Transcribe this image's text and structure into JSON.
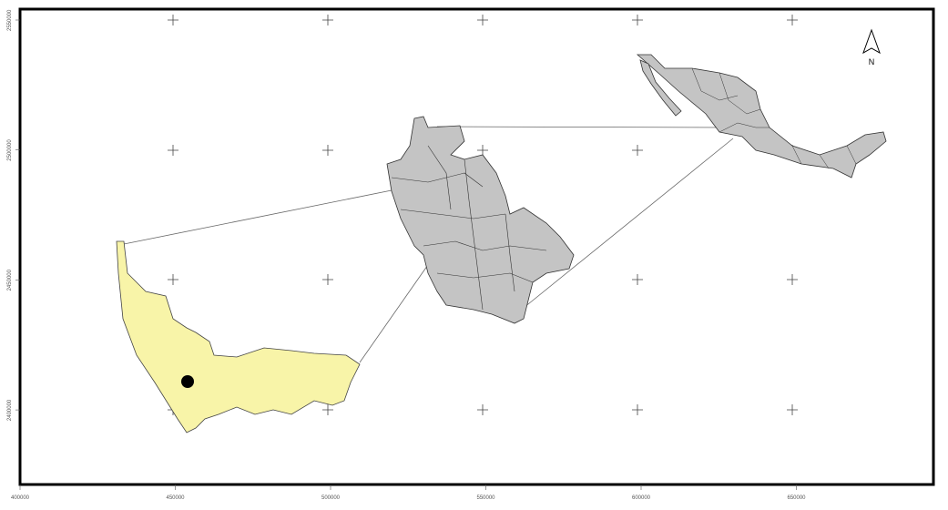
{
  "map": {
    "north_arrow_label": "N",
    "x_ticks": [
      "400000",
      "450000",
      "500000",
      "550000",
      "600000",
      "650000"
    ],
    "y_ticks": [
      "2550000",
      "2500000",
      "2450000",
      "2400000"
    ],
    "colors": {
      "study_area_fill": "#f8f4a8",
      "region_fill": "#c4c4c4",
      "frame": "#000000",
      "site_marker": "#000000"
    },
    "layers": [
      "study-area-municipality",
      "state-municipalities",
      "mexico-states",
      "site-point",
      "locator-lines",
      "graticule-crosses"
    ]
  }
}
